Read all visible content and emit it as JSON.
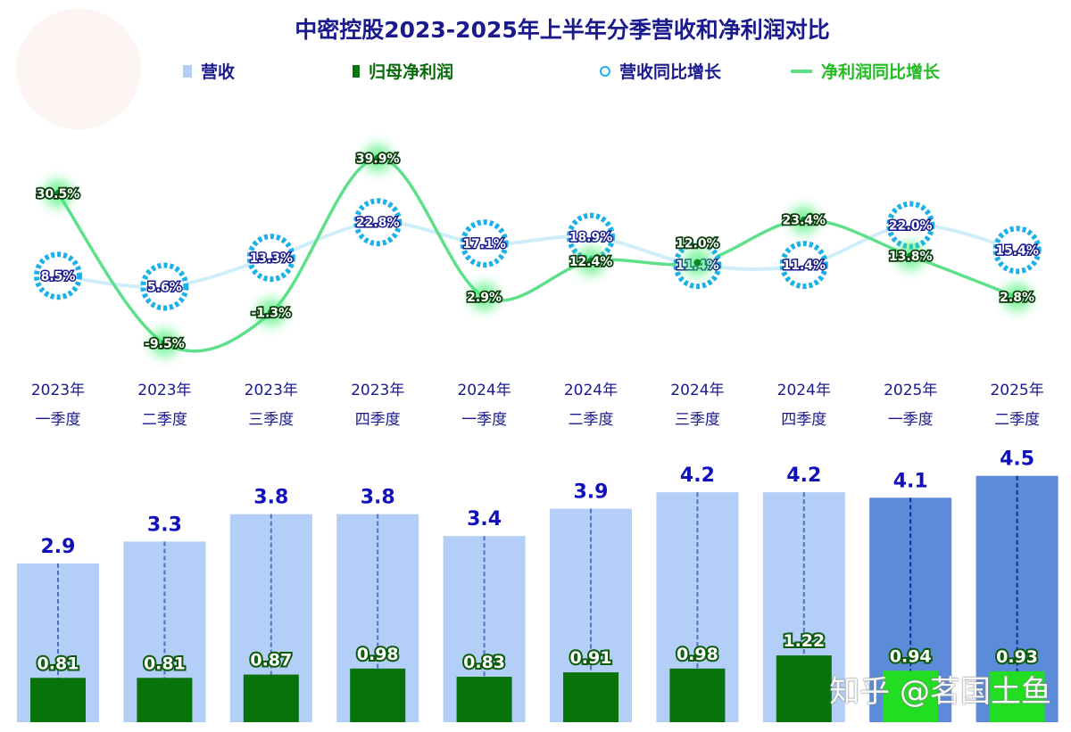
{
  "chart_data": {
    "type": "bar+line",
    "title": "中密控股2023-2025年上半年分季营收和净利润对比",
    "categories": [
      [
        "2023年",
        "一季度"
      ],
      [
        "2023年",
        "二季度"
      ],
      [
        "2023年",
        "三季度"
      ],
      [
        "2023年",
        "四季度"
      ],
      [
        "2024年",
        "一季度"
      ],
      [
        "2024年",
        "二季度"
      ],
      [
        "2024年",
        "三季度"
      ],
      [
        "2024年",
        "四季度"
      ],
      [
        "2025年",
        "一季度"
      ],
      [
        "2025年",
        "二季度"
      ]
    ],
    "series": [
      {
        "name": "营收",
        "type": "bar",
        "values": [
          2.9,
          3.3,
          3.8,
          3.8,
          3.4,
          3.9,
          4.2,
          4.2,
          4.1,
          4.5
        ],
        "labels": [
          "2.9",
          "3.3",
          "3.8",
          "3.8",
          "3.4",
          "3.9",
          "4.2",
          "4.2",
          "4.1",
          "4.5"
        ]
      },
      {
        "name": "归母净利润",
        "type": "bar",
        "values": [
          0.81,
          0.81,
          0.87,
          0.98,
          0.83,
          0.91,
          0.98,
          1.22,
          0.94,
          0.93
        ],
        "labels": [
          "0.81",
          "0.81",
          "0.87",
          "0.98",
          "0.83",
          "0.91",
          "0.98",
          "1.22",
          "0.94",
          "0.93"
        ]
      },
      {
        "name": "营收同比增长",
        "type": "line",
        "values": [
          8.5,
          5.6,
          13.3,
          22.8,
          17.1,
          18.9,
          11.4,
          11.4,
          22.0,
          15.4
        ],
        "labels": [
          "8.5%",
          "5.6%",
          "13.3%",
          "22.8%",
          "17.1%",
          "18.9%",
          "11.4%",
          "11.4%",
          "22.0%",
          "15.4%"
        ]
      },
      {
        "name": "净利润同比增长",
        "type": "line",
        "values": [
          30.5,
          -9.5,
          -1.3,
          39.9,
          2.9,
          12.4,
          12.0,
          23.4,
          13.8,
          2.8
        ],
        "labels": [
          "30.5%",
          "-9.5%",
          "-1.3%",
          "39.9%",
          "2.9%",
          "12.4%",
          "12.0%",
          "23.4%",
          "13.8%",
          "2.8%"
        ]
      }
    ],
    "legend_position": "top",
    "grid": false,
    "colors": {
      "revenue": "#b3cff7",
      "revenue_2025": "#5b8bd9",
      "profit": "#08720b",
      "profit_2025": "#22dd22",
      "revenue_growth": "#1ab0e8",
      "profit_growth": "#5ee08a",
      "label_blue": "#1111bb"
    }
  },
  "watermark": "知乎 @茗国土鱼"
}
